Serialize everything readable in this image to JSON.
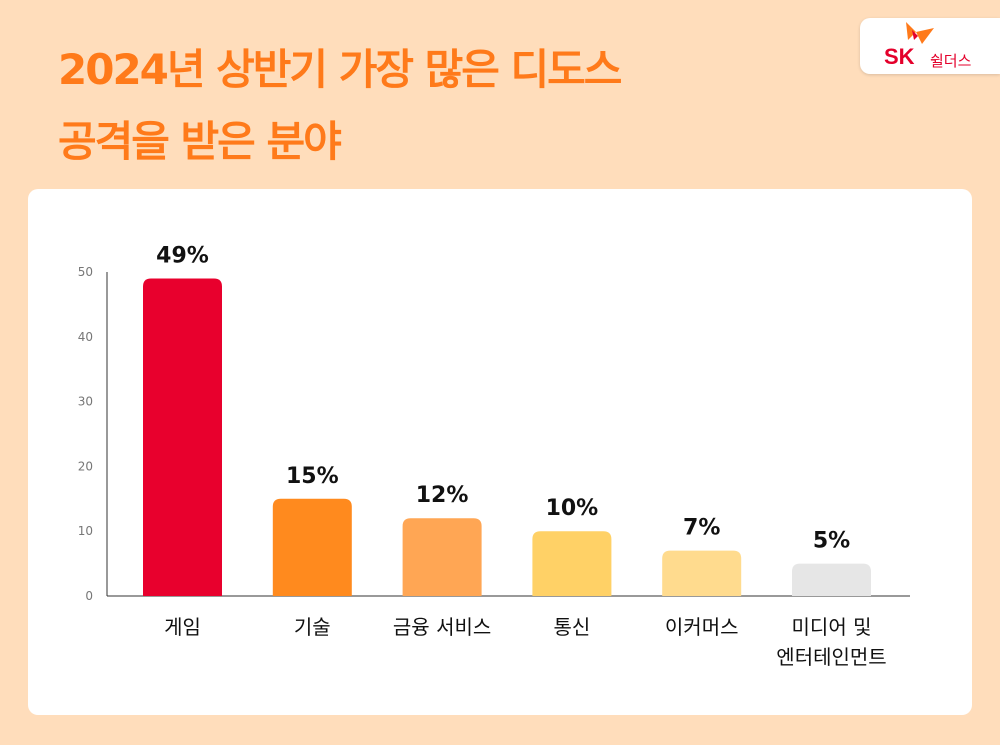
{
  "title_line1": "2024년 상반기 가장 많은 디도스",
  "title_line2": "공격을 받은 분야",
  "logo": {
    "brand": "SK",
    "sub": "쉴더스"
  },
  "colors": {
    "accent": "#FF7A1A"
  },
  "chart_data": {
    "type": "bar",
    "title": "2024년 상반기 가장 많은 디도스 공격을 받은 분야",
    "categories": [
      [
        "게임"
      ],
      [
        "기술"
      ],
      [
        "금융 서비스"
      ],
      [
        "통신"
      ],
      [
        "이커머스"
      ],
      [
        "미디어 및",
        "엔터테인먼트"
      ]
    ],
    "values": [
      49,
      15,
      12,
      10,
      7,
      5
    ],
    "data_labels": [
      "49%",
      "15%",
      "12%",
      "10%",
      "7%",
      "5%"
    ],
    "bar_colors": [
      "#E8002D",
      "#FF8A1E",
      "#FFA654",
      "#FFD166",
      "#FFDB8E",
      "#E6E6E6"
    ],
    "ylim": [
      0,
      50
    ],
    "yticks": [
      0,
      10,
      20,
      30,
      40,
      50
    ],
    "xlabel": "",
    "ylabel": ""
  }
}
